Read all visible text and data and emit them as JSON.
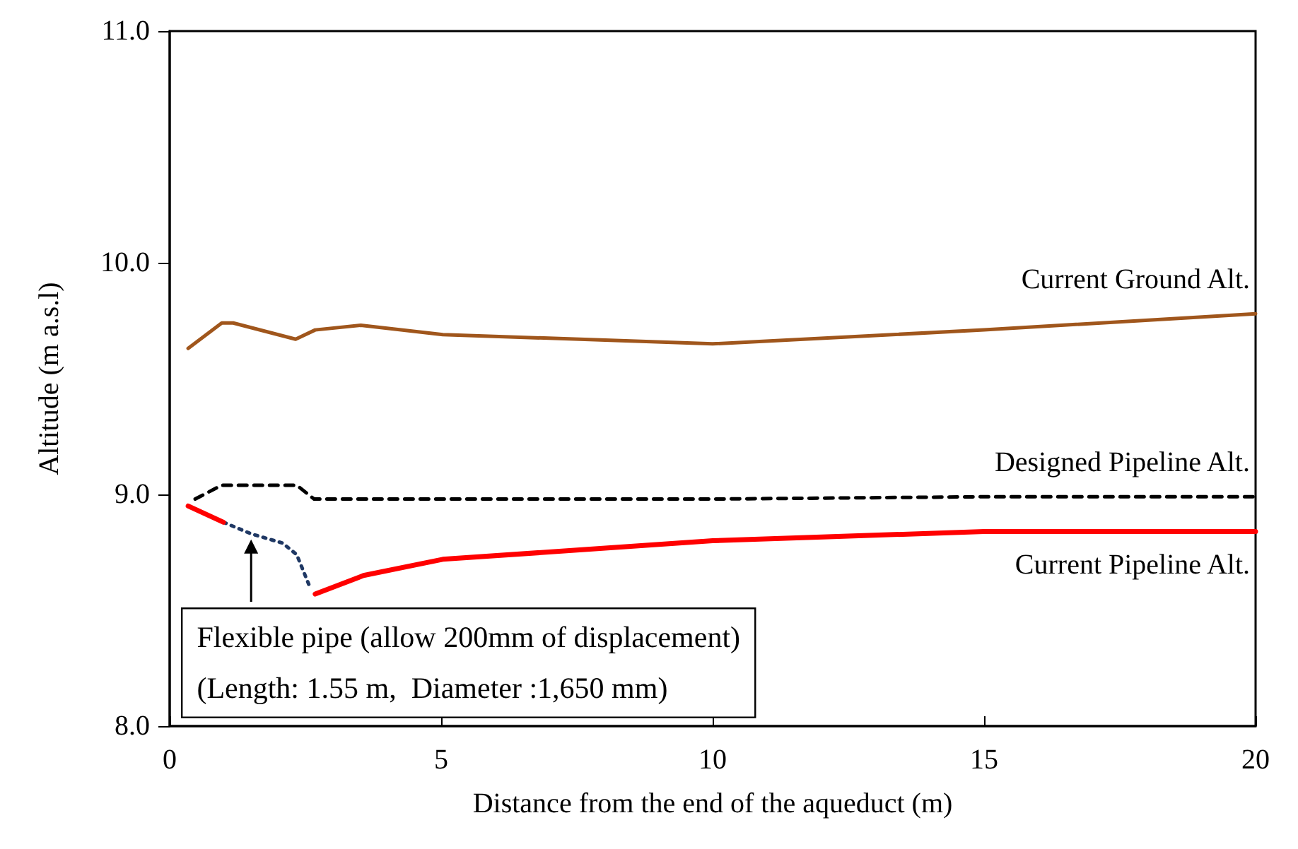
{
  "chart_data": {
    "type": "line",
    "xlabel": "Distance from the end of the aqueduct (m)",
    "ylabel": "Altitude (m a.s.l)",
    "xlim": [
      0,
      20
    ],
    "xticks": [
      0,
      5,
      10,
      15,
      20
    ],
    "ylim": [
      8,
      11
    ],
    "yticks": [
      {
        "value": 8,
        "label": "8.0"
      },
      {
        "value": 9,
        "label": "9.0"
      },
      {
        "value": 10,
        "label": "10.0"
      },
      {
        "value": 11,
        "label": "11.0"
      }
    ],
    "grid": false,
    "marker": "none",
    "series": [
      {
        "name": "Current Ground Alt.",
        "color": "#a0561c",
        "line_style": "solid",
        "x": [
          0.34,
          0.96,
          1.17,
          2.32,
          2.68,
          3.52,
          5.03,
          10,
          15,
          20
        ],
        "values": [
          9.63,
          9.74,
          9.74,
          9.67,
          9.71,
          9.73,
          9.69,
          9.65,
          9.71,
          9.78
        ]
      },
      {
        "name": "Designed Pipeline Alt.",
        "color": "#000000",
        "line_style": "dashed",
        "x": [
          0.47,
          0.96,
          2.34,
          2.66,
          5,
          10,
          15,
          20
        ],
        "values": [
          8.98,
          9.04,
          9.04,
          8.98,
          8.98,
          8.98,
          8.99,
          8.99
        ]
      },
      {
        "color": "#1f3864",
        "line_style": "dotted",
        "x": [
          0.99,
          1.5,
          2.08,
          2.34,
          2.6
        ],
        "values": [
          8.88,
          8.83,
          8.79,
          8.74,
          8.59
        ]
      },
      {
        "name": "Current Pipeline Alt.",
        "color": "#ff0000",
        "line_style": "solid",
        "x": [
          0.34,
          0.99,
          1.5,
          2.68,
          3.57,
          5.03,
          10,
          15,
          20
        ],
        "values": [
          8.95,
          8.88,
          null,
          8.57,
          8.65,
          8.72,
          8.8,
          8.84,
          8.84
        ]
      }
    ],
    "annotations": [
      {
        "text": "Flexible pipe (allow 200mm of displacement)\n(Length: 1.55 m,  Diameter :1,650 mm)",
        "x": 1.5,
        "y": 8.83
      }
    ]
  }
}
